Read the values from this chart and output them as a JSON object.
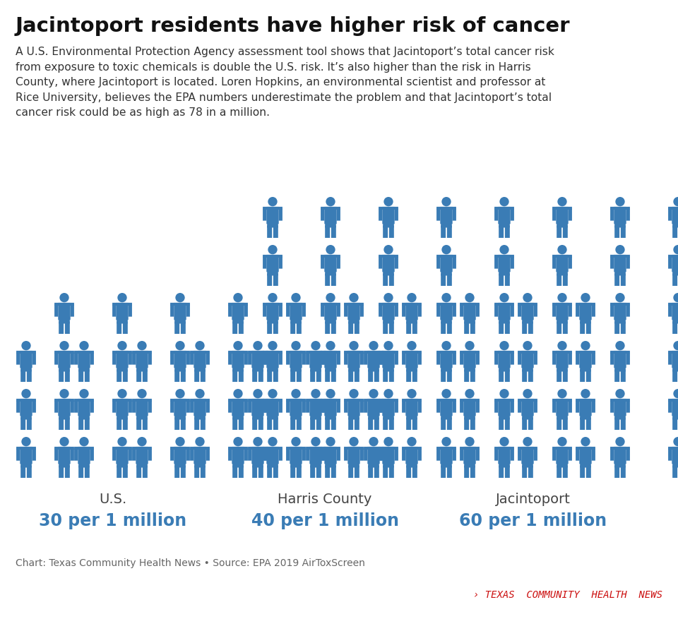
{
  "title": "Jacintoport residents have higher risk of cancer",
  "subtitle": "A U.S. Environmental Protection Agency assessment tool shows that Jacintoport’s total cancer risk\nfrom exposure to toxic chemicals is double the U.S. risk. It’s also higher than the risk in Harris\nCounty, where Jacintoport is located. Loren Hopkins, an environmental scientist and professor at\nRice University, believes the EPA numbers underestimate the problem and that Jacintoport’s total\ncancer risk could be as high as 78 in a million.",
  "groups": [
    {
      "name": "U.S.",
      "value": "30 per 1 million",
      "count": 30,
      "cols": 10,
      "rows": 3
    },
    {
      "name": "Harris County",
      "value": "40 per 1 million",
      "count": 40,
      "cols": 10,
      "rows": 4
    },
    {
      "name": "Jacintoport",
      "value": "60 per 1 million",
      "count": 60,
      "cols": 10,
      "rows": 6
    }
  ],
  "figure_color": "#3a7cb5",
  "label_color": "#444444",
  "value_color": "#3a7cb5",
  "bg_color": "#ffffff",
  "source_text": "Chart: Texas Community Health News • Source: EPA 2019 AirToxScreen",
  "branding_text": "› TEXAS  COMMUNITY  HEALTH  NEWS",
  "branding_color": "#cc1111",
  "title_fontsize": 21,
  "subtitle_fontsize": 11.2,
  "label_fontsize": 14,
  "value_fontsize": 17,
  "source_fontsize": 10,
  "branding_fontsize": 10
}
